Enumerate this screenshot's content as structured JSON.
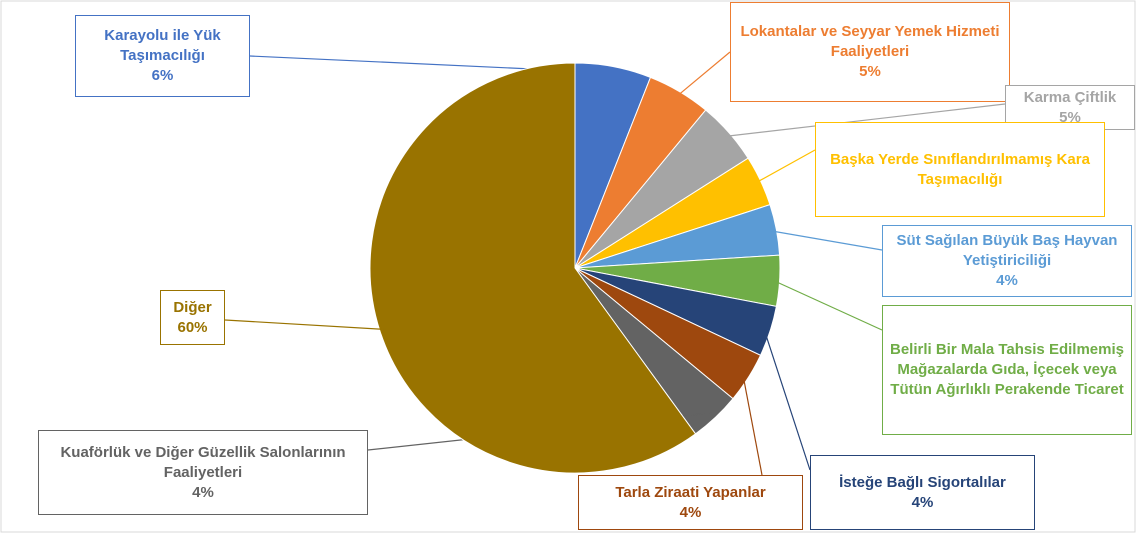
{
  "chart_data": {
    "type": "pie",
    "categories": [
      "Karayolu ile Yük Taşımacılığı",
      "Lokantalar ve Seyyar Yemek Hizmeti Faaliyetleri",
      "Karma Çiftlik",
      "Başka Yerde Sınıflandırılmamış Kara Taşımacılığı",
      "Süt Sağılan Büyük Baş Hayvan Yetiştiriciliği",
      "Belirli Bir Mala Tahsis Edilmemiş Mağazalarda Gıda, İçecek veya Tütün Ağırlıklı Perakende Ticaret",
      "İsteğe Bağlı Sigortalılar",
      "Tarla Ziraati Yapanlar",
      "Kuaförlük ve Diğer Güzellik Salonlarının Faaliyetleri",
      "Diğer"
    ],
    "values": [
      6,
      5,
      5,
      4,
      4,
      4,
      4,
      4,
      4,
      60
    ],
    "value_labels": [
      "6%",
      "5%",
      "5%",
      null,
      "4%",
      null,
      "4%",
      "4%",
      "4%",
      "60%"
    ],
    "colors": [
      "#4472c4",
      "#ed7d31",
      "#a5a5a5",
      "#ffc000",
      "#5b9bd5",
      "#70ad47",
      "#264478",
      "#9e480e",
      "#636363",
      "#997300"
    ]
  }
}
